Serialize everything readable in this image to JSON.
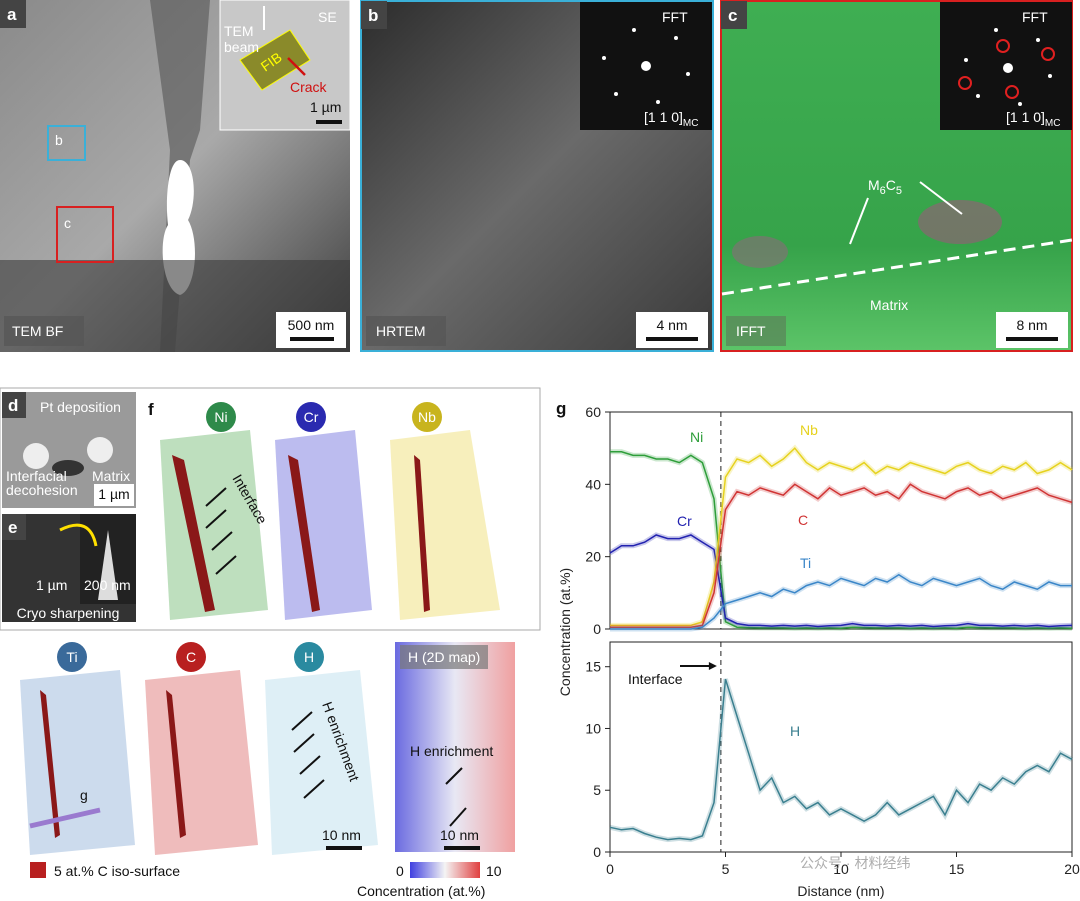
{
  "panels": {
    "a": {
      "label": "a",
      "inset_mode": "SE",
      "inset_beam": [
        "TEM",
        "beam"
      ],
      "inset_fib": "FIB",
      "inset_crack": "Crack",
      "inset_scale": "1 µm",
      "box_b": "b",
      "box_c": "c",
      "mode": "TEM BF",
      "scale": "500 nm"
    },
    "b": {
      "label": "b",
      "fft": "FFT",
      "zone": "[1 1 0]",
      "zone_sub": "MC",
      "mode": "HRTEM",
      "scale": "4 nm"
    },
    "c": {
      "label": "c",
      "fft": "FFT",
      "zone": "[1 1 0]",
      "zone_sub": "MC",
      "phase": [
        "M",
        "6",
        "C",
        "5"
      ],
      "matrix": "Matrix",
      "mode": "IFFT",
      "scale": "8 nm"
    },
    "d": {
      "label": "d",
      "pt": "Pt deposition",
      "matrix": "Matrix",
      "decohesion": [
        "Interfacial",
        "decohesion"
      ],
      "scale": "1 µm"
    },
    "e": {
      "label": "e",
      "scale_left": "1 µm",
      "scale_right": "200 nm",
      "caption": "Cryo sharpening"
    },
    "f": {
      "label": "f",
      "elements": [
        "Ni",
        "Cr",
        "Nb",
        "Ti",
        "C",
        "H"
      ],
      "map_title": "H (2D map)",
      "interface": "Interface",
      "h_enrichment": "H enrichment",
      "map_enrichment": "H enrichment",
      "scale": "10 nm",
      "map_scale": "10 nm",
      "g_vector": "g",
      "legend": "5 at.% C iso-surface",
      "colorbar_min": 0,
      "colorbar_max": 10,
      "colorbar_label": "Concentration (at.%)"
    }
  },
  "chart_data": [
    {
      "type": "line",
      "panel_label": "g",
      "ylabel": "Concentration (at.%)",
      "x": [
        0,
        0.5,
        1,
        1.5,
        2,
        2.5,
        3,
        3.5,
        4,
        4.5,
        5,
        5.5,
        6,
        6.5,
        7,
        7.5,
        8,
        8.5,
        9,
        9.5,
        10,
        10.5,
        11,
        11.5,
        12,
        12.5,
        13,
        13.5,
        14,
        14.5,
        15,
        15.5,
        16,
        16.5,
        17,
        17.5,
        18,
        18.5,
        19,
        19.5,
        20
      ],
      "xlim": [
        0,
        20
      ],
      "ylim": [
        0,
        60
      ],
      "yticks": [
        0,
        20,
        40,
        60
      ],
      "interface_x": 4.8,
      "series": [
        {
          "name": "Ni",
          "color": "#2e9e3a",
          "values": [
            49,
            49,
            48,
            48,
            47,
            47,
            46,
            48,
            46,
            36,
            2,
            0.5,
            0.4,
            0.3,
            0.3,
            0.3,
            0.2,
            0.3,
            0.2,
            0.3,
            0.2,
            0.5,
            0.4,
            0.3,
            0.3,
            0.3,
            0.2,
            0.3,
            0.2,
            0.3,
            0.2,
            0.5,
            0.4,
            0.3,
            0.3,
            0.3,
            0.2,
            0.3,
            0.2,
            0.3,
            0.2
          ]
        },
        {
          "name": "Cr",
          "color": "#2222b0",
          "values": [
            21,
            23,
            23,
            24,
            26,
            25,
            25,
            26,
            24,
            22,
            3,
            1.5,
            1,
            1,
            0.8,
            1,
            0.8,
            1,
            0.7,
            0.9,
            1,
            1.5,
            1,
            1,
            0.8,
            1,
            0.8,
            1,
            0.7,
            0.9,
            1,
            1.5,
            1,
            1,
            0.8,
            1,
            0.8,
            1,
            0.7,
            0.9,
            1
          ]
        },
        {
          "name": "Nb",
          "color": "#e6d21e",
          "values": [
            1,
            1,
            1,
            1,
            1,
            1,
            1,
            1,
            2,
            13,
            42,
            47,
            46,
            48,
            45,
            47,
            50,
            46,
            44,
            46,
            45,
            44,
            46,
            43,
            45,
            44,
            46,
            45,
            44,
            43,
            45,
            46,
            44,
            43,
            45,
            44,
            46,
            43,
            44,
            46,
            44
          ]
        },
        {
          "name": "C",
          "color": "#d03434",
          "values": [
            0.5,
            0.5,
            0.5,
            0.5,
            0.5,
            0.5,
            0.5,
            0.5,
            1,
            10,
            33,
            38,
            37,
            39,
            38,
            37,
            40,
            38,
            36,
            39,
            37,
            38,
            39,
            37,
            38,
            36,
            40,
            38,
            37,
            36,
            38,
            39,
            37,
            38,
            36,
            37,
            38,
            39,
            37,
            36,
            35
          ]
        },
        {
          "name": "Ti",
          "color": "#3a86c8",
          "values": [
            0,
            0,
            0,
            0,
            0,
            0,
            0,
            0,
            0.5,
            3,
            7,
            8,
            9,
            10,
            9,
            11,
            10,
            12,
            13,
            12,
            14,
            13,
            12,
            14,
            13,
            15,
            13,
            12,
            14,
            13,
            12,
            13,
            14,
            12,
            11,
            13,
            12,
            11,
            13,
            12,
            12
          ]
        }
      ]
    },
    {
      "type": "line",
      "xlabel": "Distance (nm)",
      "annotation": "Interface",
      "x": [
        0,
        0.5,
        1,
        1.5,
        2,
        2.5,
        3,
        3.5,
        4,
        4.5,
        5,
        5.5,
        6,
        6.5,
        7,
        7.5,
        8,
        8.5,
        9,
        9.5,
        10,
        10.5,
        11,
        11.5,
        12,
        12.5,
        13,
        13.5,
        14,
        14.5,
        15,
        15.5,
        16,
        16.5,
        17,
        17.5,
        18,
        18.5,
        19,
        19.5,
        20
      ],
      "xlim": [
        0,
        20
      ],
      "xticks": [
        0,
        5,
        10,
        15,
        20
      ],
      "ylim": [
        0,
        17
      ],
      "yticks": [
        0,
        5,
        10,
        15
      ],
      "interface_x": 4.8,
      "series": [
        {
          "name": "H",
          "color": "#3a7f8f",
          "values": [
            2,
            1.8,
            1.9,
            1.5,
            1.2,
            1.0,
            1.1,
            1.0,
            1.3,
            4,
            14,
            11,
            8,
            5,
            6,
            4,
            4.5,
            3.5,
            4,
            3,
            3.5,
            3,
            2.5,
            3,
            4,
            3,
            3.5,
            4,
            4.5,
            3,
            5,
            4,
            5.5,
            5,
            6,
            5.5,
            6.5,
            7,
            6.5,
            8,
            7.5
          ]
        }
      ]
    }
  ],
  "watermark": "公众号 · 材料经纬"
}
